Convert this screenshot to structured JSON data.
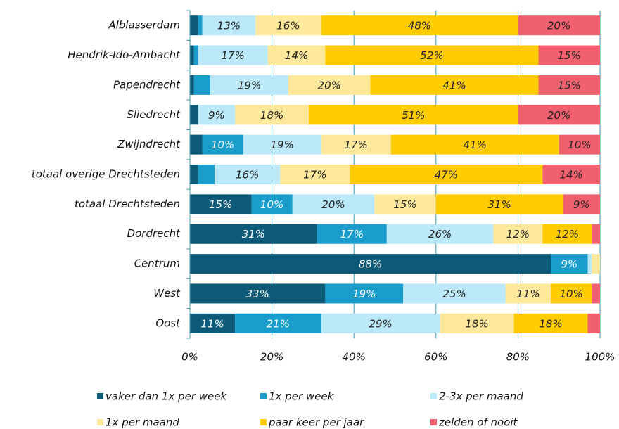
{
  "chart_data": {
    "type": "stacked_bar_horizontal",
    "categories": [
      "Alblasserdam",
      "Hendrik-Ido-Ambacht",
      "Papendrecht",
      "Sliedrecht",
      "Zwijndrecht",
      "totaal overige Drechtsteden",
      "totaal Drechtsteden",
      "Dordrecht",
      "Centrum",
      "West",
      "Oost"
    ],
    "series": [
      {
        "name": "vaker dan 1x per week",
        "color": "#0d5a78",
        "values": [
          2,
          1,
          1,
          2,
          3,
          2,
          15,
          31,
          88,
          33,
          11
        ],
        "value_labels": [
          null,
          null,
          null,
          null,
          null,
          null,
          "15%",
          "31%",
          "88%",
          "33%",
          "11%"
        ]
      },
      {
        "name": "1x per week",
        "color": "#1a9dca",
        "values": [
          1,
          1,
          4,
          0,
          10,
          4,
          10,
          17,
          9,
          19,
          21
        ],
        "value_labels": [
          null,
          null,
          null,
          null,
          "10%",
          null,
          "10%",
          "17%",
          "9%",
          "19%",
          "21%"
        ]
      },
      {
        "name": "2-3x per maand",
        "color": "#bce9f9",
        "values": [
          13,
          17,
          19,
          9,
          19,
          16,
          20,
          26,
          1,
          25,
          29
        ],
        "value_labels": [
          "13%",
          "17%",
          "19%",
          "9%",
          "19%",
          "16%",
          "20%",
          "26%",
          null,
          "25%",
          "29%"
        ]
      },
      {
        "name": "1x per maand",
        "color": "#fde89c",
        "values": [
          16,
          14,
          20,
          18,
          17,
          17,
          15,
          12,
          2,
          11,
          18
        ],
        "value_labels": [
          "16%",
          "14%",
          "20%",
          "18%",
          "17%",
          "17%",
          "15%",
          "12%",
          null,
          "11%",
          "18%"
        ]
      },
      {
        "name": "paar keer per jaar",
        "color": "#ffcc00",
        "values": [
          48,
          52,
          41,
          51,
          41,
          47,
          31,
          12,
          0,
          10,
          18
        ],
        "value_labels": [
          "48%",
          "52%",
          "41%",
          "51%",
          "41%",
          "47%",
          "31%",
          "12%",
          null,
          "10%",
          "18%"
        ]
      },
      {
        "name": "zelden of nooit",
        "color": "#f0606e",
        "values": [
          20,
          15,
          15,
          20,
          10,
          14,
          9,
          2,
          0,
          2,
          3
        ],
        "value_labels": [
          "20%",
          "15%",
          "15%",
          "20%",
          "10%",
          "14%",
          "9%",
          null,
          null,
          null,
          null
        ]
      }
    ],
    "xlim": [
      0,
      100
    ],
    "xticks": [
      {
        "value": 0,
        "label": "0%"
      },
      {
        "value": 20,
        "label": "20%"
      },
      {
        "value": 40,
        "label": "40%"
      },
      {
        "value": 60,
        "label": "60%"
      },
      {
        "value": 80,
        "label": "80%"
      },
      {
        "value": 100,
        "label": "100%"
      }
    ],
    "grid": true
  }
}
